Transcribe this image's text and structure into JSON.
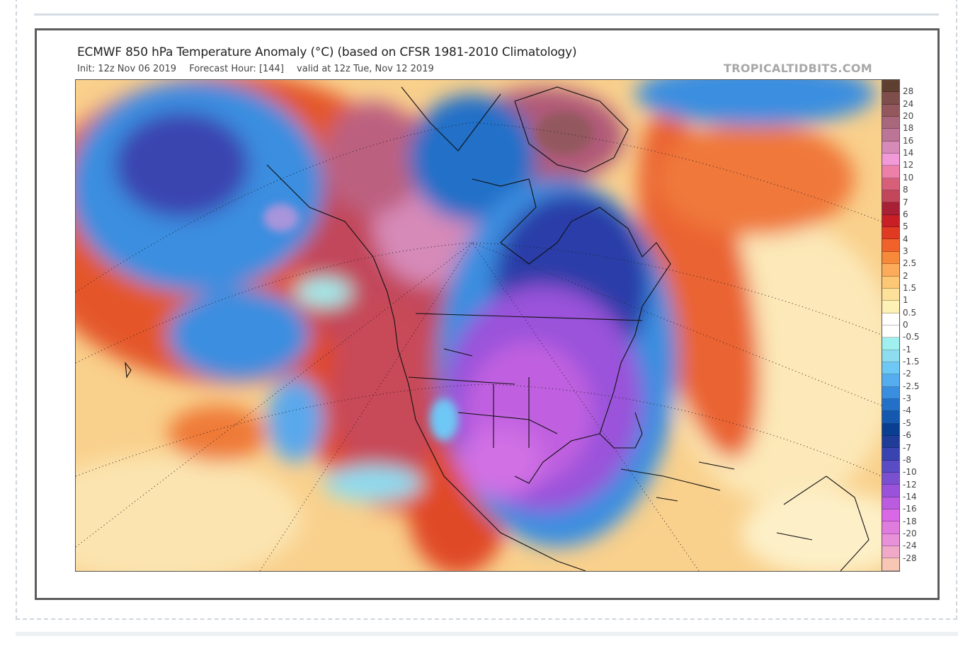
{
  "header": {
    "title": "ECMWF 850 hPa Temperature Anomaly (°C) (based on CFSR 1981-2010 Climatology)",
    "init": "Init: 12z Nov 06 2019",
    "forecast_hour": "Forecast Hour: [144]",
    "valid": "valid at 12z Tue, Nov 12 2019",
    "brand": "TROPICALTIDBITS.COM"
  },
  "colorbar": {
    "labels": [
      "28",
      "24",
      "20",
      "18",
      "16",
      "14",
      "12",
      "10",
      "8",
      "7",
      "6",
      "5",
      "4",
      "3",
      "2.5",
      "2",
      "1.5",
      "1",
      "0.5",
      "0",
      "-0.5",
      "-1",
      "-1.5",
      "-2",
      "-2.5",
      "-3",
      "-4",
      "-5",
      "-6",
      "-7",
      "-8",
      "-10",
      "-12",
      "-14",
      "-16",
      "-18",
      "-20",
      "-24",
      "-28"
    ],
    "colors": [
      "#5f4030",
      "#7d4e4a",
      "#93585e",
      "#a8677b",
      "#bc7596",
      "#d68ab8",
      "#f29ad8",
      "#ec80a8",
      "#d85f7a",
      "#c2475a",
      "#a82035",
      "#c81e25",
      "#e03a22",
      "#f0622a",
      "#f78a3a",
      "#fbab5a",
      "#fcc876",
      "#fde099",
      "#fdf1b5",
      "#ffffff",
      "#ffffff",
      "#a0f0f0",
      "#8ddcf0",
      "#6ec8f5",
      "#55adf0",
      "#3a8ee0",
      "#2270c8",
      "#1558b0",
      "#0a3e90",
      "#1f3c98",
      "#3a44b0",
      "#5a4cc4",
      "#7a50d0",
      "#9a52da",
      "#bb5ce0",
      "#d868e6",
      "#e07cde",
      "#e890d8",
      "#f0aac8",
      "#f8c6b4"
    ]
  }
}
